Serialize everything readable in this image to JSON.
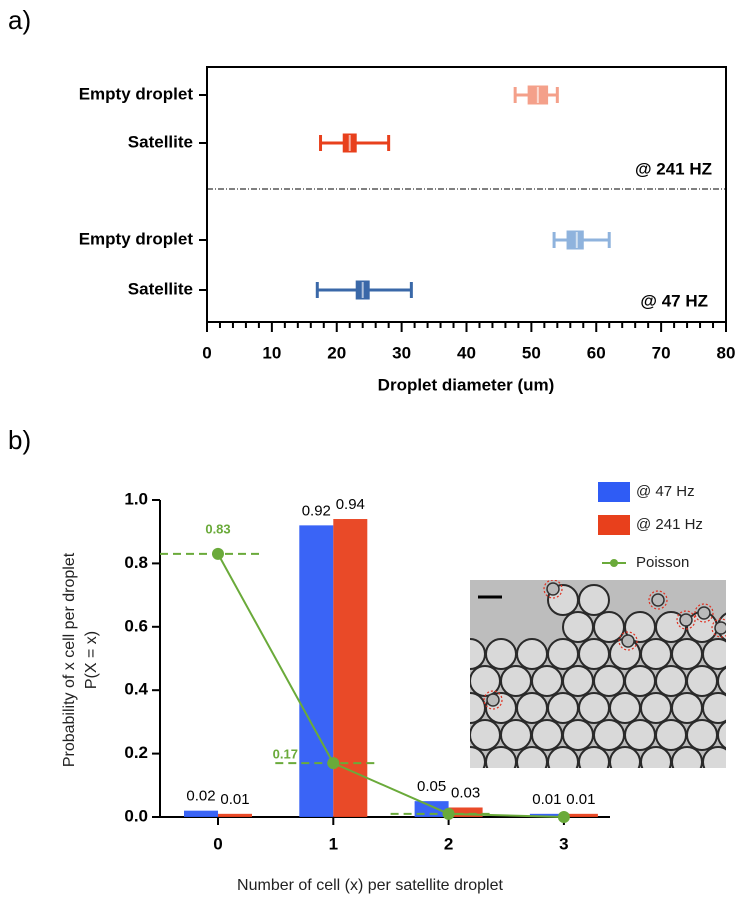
{
  "chart_data": [
    {
      "type": "box",
      "panel_label": "a)",
      "xlabel": "Droplet diameter (um)",
      "xlim": [
        0,
        80
      ],
      "xticks": [
        0,
        10,
        20,
        30,
        40,
        50,
        60,
        70,
        80
      ],
      "xminor_step": 2,
      "categories": [
        "Empty droplet",
        "Satellite",
        "Empty droplet",
        "Satellite"
      ],
      "boxes": [
        {
          "min": 47.5,
          "q1": 49.5,
          "median": 51,
          "q3": 52.5,
          "max": 54,
          "color": "#f4a08a"
        },
        {
          "min": 17.5,
          "q1": 21,
          "median": 22,
          "q3": 23,
          "max": 28,
          "color": "#e8401c"
        },
        {
          "min": 53.5,
          "q1": 55.5,
          "median": 57,
          "q3": 58,
          "max": 62,
          "color": "#8fb3dd"
        },
        {
          "min": 17,
          "q1": 23,
          "median": 24,
          "q3": 25,
          "max": 31.5,
          "color": "#3a68a8"
        }
      ],
      "annotations": [
        "@ 241 HZ",
        "@ 47 HZ"
      ]
    },
    {
      "type": "bar",
      "panel_label": "b)",
      "xlabel": "Number of cell (x) per satellite droplet",
      "ylabel": [
        "Probability of x cell per droplet",
        "P(X = x)"
      ],
      "categories": [
        "0",
        "1",
        "2",
        "3"
      ],
      "ylim": [
        0,
        1.0
      ],
      "yticks": [
        {
          "value": 0,
          "label": "0.0"
        },
        0.2,
        0.4,
        0.6,
        0.8,
        {
          "value": 1,
          "label": "1.0"
        }
      ],
      "series": [
        {
          "name": "@ 47 Hz",
          "color": "#2f5cf5",
          "values": [
            0.02,
            0.92,
            0.05,
            0.01
          ]
        },
        {
          "name": "@ 241 Hz",
          "color": "#e8401c",
          "values": [
            0.01,
            0.94,
            0.03,
            0.01
          ]
        },
        {
          "name": "Poisson",
          "type": "line",
          "color": "#6aaa3a",
          "values": [
            0.83,
            0.17,
            0.01,
            0
          ],
          "value_labels": [
            "0.83",
            "0.17",
            null,
            null
          ]
        }
      ],
      "legend": "upper right"
    }
  ]
}
